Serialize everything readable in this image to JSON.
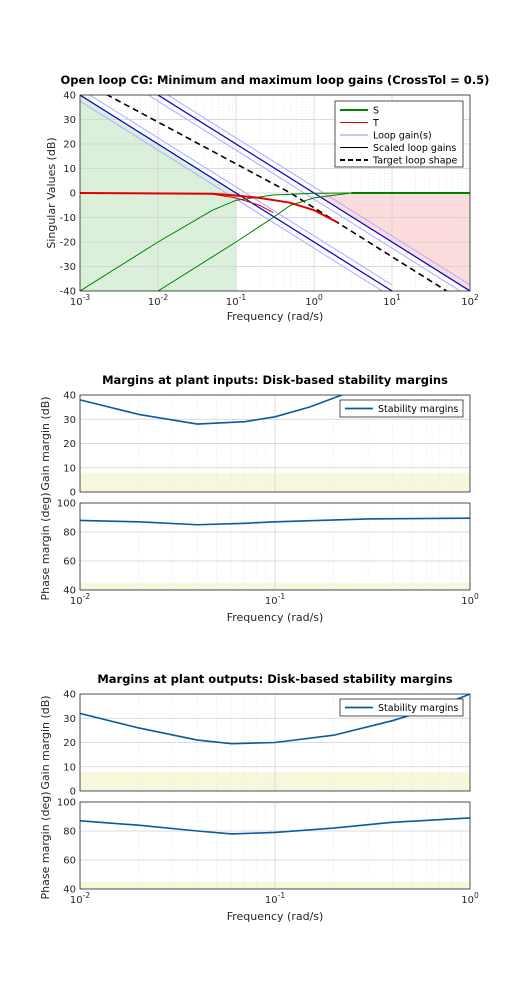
{
  "colors": {
    "s": "#008000",
    "t": "#e00000",
    "loop_gain": "#b3b3ff",
    "scaled": "#0000c8",
    "target": "#000000",
    "margin": "#0a5a9e",
    "green_region": "#daf0da",
    "red_region": "#fddcdc",
    "yellow_region": "#f7f7dc"
  },
  "chart_data": [
    {
      "type": "line",
      "title": "Open loop CG: Minimum and maximum loop gains (CrossTol = 0.5)",
      "xlabel": "Frequency (rad/s)",
      "ylabel": "Singular Values (dB)",
      "x_scale": "log",
      "xlim": [
        0.001,
        100
      ],
      "ylim": [
        -40,
        40
      ],
      "xticks": [
        "10^-3",
        "10^-2",
        "10^-1",
        "10^0",
        "10^1",
        "10^2"
      ],
      "yticks": [
        "-40",
        "-30",
        "-20",
        "-10",
        "0",
        "10",
        "20",
        "30",
        "40"
      ],
      "grid": true,
      "legend_position": "top-right",
      "legend": [
        "S",
        "T",
        "Loop gain(s)",
        "Scaled loop gains",
        "Target loop shape"
      ],
      "series": [
        {
          "name": "Target loop shape",
          "x": [
            0.001,
            0.5,
            100
          ],
          "y": [
            46,
            0,
            -46
          ]
        },
        {
          "name": "Scaled loop gains (min)",
          "x": [
            0.001,
            0.1,
            10
          ],
          "y": [
            40,
            0,
            -40
          ]
        },
        {
          "name": "Scaled loop gains (max)",
          "x": [
            0.001,
            1,
            100
          ],
          "y": [
            60,
            0,
            -40
          ]
        },
        {
          "name": "S (min)",
          "x": [
            0.001,
            0.01,
            0.05,
            0.1,
            0.3,
            1,
            3,
            100
          ],
          "y": [
            -40,
            -20,
            -7,
            -3,
            -0.8,
            -0.1,
            0,
            0
          ]
        },
        {
          "name": "S (max)",
          "x": [
            0.01,
            0.1,
            0.3,
            0.5,
            1,
            3,
            100
          ],
          "y": [
            -40,
            -20,
            -10,
            -5,
            -2,
            0,
            0
          ]
        },
        {
          "name": "T",
          "x": [
            0.001,
            0.05,
            0.1,
            0.2,
            0.5,
            1,
            2
          ],
          "y": [
            0,
            -0.3,
            -1,
            -2,
            -4,
            -7,
            -12
          ]
        }
      ]
    },
    {
      "type": "line",
      "title": "Margins at plant inputs: Disk-based stability margins",
      "xlabel": "Frequency (rad/s)",
      "ylabel_top": "Gain margin (dB)",
      "ylabel_bottom": "Phase margin (deg)",
      "x_scale": "log",
      "xlim": [
        0.01,
        1
      ],
      "ylim_gain": [
        0,
        40
      ],
      "ylim_phase": [
        40,
        100
      ],
      "xticks": [
        "10^-2",
        "10^-1",
        "10^0"
      ],
      "yticks_gain": [
        "0",
        "10",
        "20",
        "30",
        "40"
      ],
      "yticks_phase": [
        "40",
        "60",
        "80",
        "100"
      ],
      "legend": [
        "Stability margins"
      ],
      "legend_position": "top-right",
      "gain_margin": {
        "x": [
          0.01,
          0.02,
          0.04,
          0.07,
          0.1,
          0.15,
          0.22
        ],
        "y": [
          38,
          32,
          28,
          29,
          31,
          35,
          40
        ]
      },
      "phase_margin": {
        "x": [
          0.01,
          0.02,
          0.04,
          0.07,
          0.1,
          0.3,
          1
        ],
        "y": [
          88,
          87,
          85,
          86,
          87,
          89,
          89.5
        ]
      },
      "target_gain_band": [
        0,
        8
      ],
      "target_phase_band": [
        40,
        45
      ]
    },
    {
      "type": "line",
      "title": "Margins at plant outputs: Disk-based stability margins",
      "xlabel": "Frequency (rad/s)",
      "ylabel_top": "Gain margin (dB)",
      "ylabel_bottom": "Phase margin (deg)",
      "x_scale": "log",
      "xlim": [
        0.01,
        1
      ],
      "ylim_gain": [
        0,
        40
      ],
      "ylim_phase": [
        40,
        100
      ],
      "xticks": [
        "10^-2",
        "10^-1",
        "10^0"
      ],
      "yticks_gain": [
        "0",
        "10",
        "20",
        "30",
        "40"
      ],
      "yticks_phase": [
        "40",
        "60",
        "80",
        "100"
      ],
      "legend": [
        "Stability margins"
      ],
      "legend_position": "top-right",
      "gain_margin": {
        "x": [
          0.01,
          0.02,
          0.04,
          0.06,
          0.1,
          0.2,
          0.4,
          0.7,
          1
        ],
        "y": [
          32,
          26,
          21,
          19.5,
          20,
          23,
          29,
          35,
          40
        ]
      },
      "phase_margin": {
        "x": [
          0.01,
          0.02,
          0.04,
          0.06,
          0.1,
          0.2,
          0.4,
          1
        ],
        "y": [
          87,
          84,
          80,
          78,
          79,
          82,
          86,
          89
        ]
      },
      "target_gain_band": [
        0,
        8
      ],
      "target_phase_band": [
        40,
        45
      ]
    }
  ]
}
